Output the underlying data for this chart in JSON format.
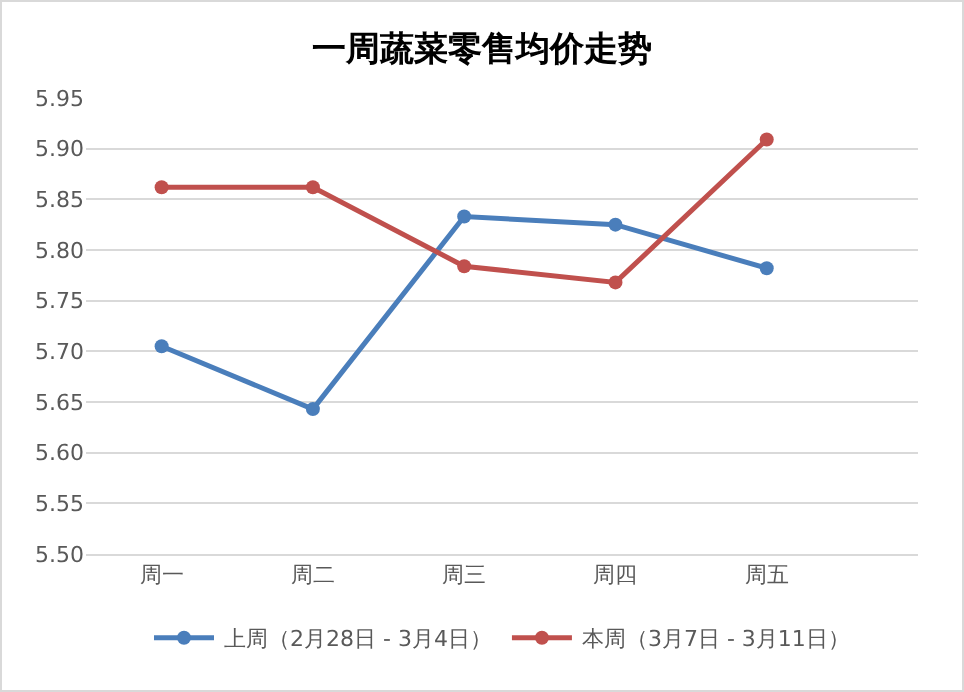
{
  "chart_data": {
    "type": "line",
    "title": "一周蔬菜零售均价走势",
    "categories": [
      "周一",
      "周二",
      "周三",
      "周四",
      "周五"
    ],
    "series": [
      {
        "name": "上周（2月28日 - 3月4日）",
        "color": "#4a7ebb",
        "values": [
          5.705,
          5.643,
          5.833,
          5.825,
          5.782
        ]
      },
      {
        "name": "本周（3月7日 - 3月11日）",
        "color": "#c0504d",
        "values": [
          5.862,
          5.862,
          5.784,
          5.768,
          5.909
        ]
      }
    ],
    "ylim": [
      5.5,
      5.95
    ],
    "yticks": [
      {
        "value": 5.5,
        "label": "5.50"
      },
      {
        "value": 5.55,
        "label": "5.55"
      },
      {
        "value": 5.6,
        "label": "5.60"
      },
      {
        "value": 5.65,
        "label": "5.65"
      },
      {
        "value": 5.7,
        "label": "5.70"
      },
      {
        "value": 5.75,
        "label": "5.75"
      },
      {
        "value": 5.8,
        "label": "5.80"
      },
      {
        "value": 5.85,
        "label": "5.85"
      },
      {
        "value": 5.9,
        "label": "5.90"
      },
      {
        "value": 5.95,
        "label": "5.95"
      }
    ],
    "grid": "y",
    "legend": "bottom",
    "marker": "circle",
    "line_style": "solid"
  }
}
